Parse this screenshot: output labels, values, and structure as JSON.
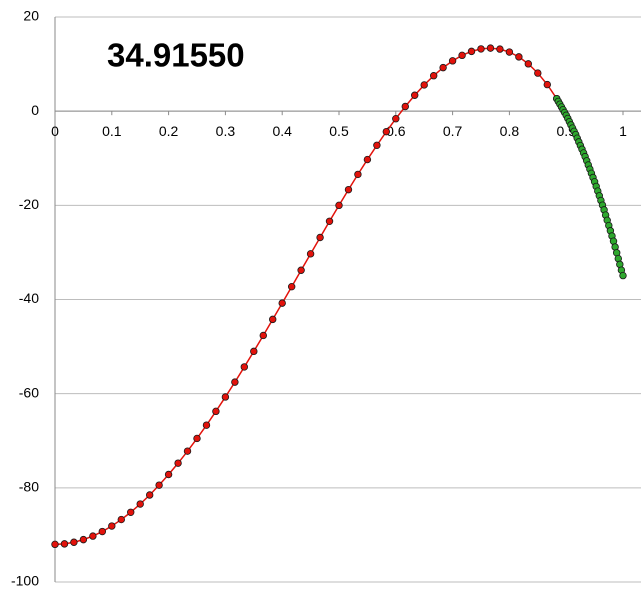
{
  "chart_data": {
    "type": "scatter",
    "title": "34.91550",
    "xlim": [
      0,
      1
    ],
    "ylim": [
      -100,
      20
    ],
    "xticks": [
      0,
      0.1,
      0.2,
      0.3,
      0.4,
      0.5,
      0.6,
      0.7,
      0.8,
      0.9,
      1
    ],
    "yticks": [
      20,
      0,
      -20,
      -40,
      -60,
      -80,
      -100
    ],
    "grid": true,
    "series": [
      {
        "color": "#e3120b",
        "mode": "lines+markers",
        "x": [
          0,
          0.0167,
          0.0333,
          0.05,
          0.0667,
          0.0833,
          0.1,
          0.1167,
          0.1333,
          0.15,
          0.1667,
          0.1833,
          0.2,
          0.2167,
          0.2333,
          0.25,
          0.2667,
          0.2833,
          0.3,
          0.3167,
          0.3333,
          0.35,
          0.3667,
          0.3833,
          0.4,
          0.4167,
          0.4333,
          0.45,
          0.4667,
          0.4833,
          0.5,
          0.5167,
          0.5333,
          0.55,
          0.5667,
          0.5833,
          0.6,
          0.6167,
          0.6333,
          0.65,
          0.6667,
          0.6833,
          0.7,
          0.7167,
          0.7333,
          0.75,
          0.7667,
          0.7833,
          0.8,
          0.8167,
          0.8333,
          0.85,
          0.8667,
          0.8833
        ],
        "values": [
          -92,
          -91.9,
          -91.56,
          -91.0,
          -90.25,
          -89.28,
          -88.11,
          -86.74,
          -85.19,
          -83.44,
          -81.52,
          -79.43,
          -77.17,
          -74.76,
          -72.21,
          -69.51,
          -66.69,
          -63.75,
          -60.7,
          -57.55,
          -54.32,
          -51.01,
          -47.64,
          -44.22,
          -40.77,
          -37.28,
          -33.79,
          -30.3,
          -26.83,
          -23.39,
          -20.0,
          -16.67,
          -13.43,
          -10.28,
          -7.25,
          -4.35,
          -1.6,
          0.99,
          3.38,
          5.57,
          7.53,
          9.25,
          10.69,
          11.86,
          12.7,
          13.22,
          13.39,
          13.18,
          12.56,
          11.53,
          10.05,
          8.09,
          5.64,
          2.66
        ]
      },
      {
        "color": "#2ea82e",
        "mode": "markers",
        "x": [
          0.8833,
          0.8861,
          0.8889,
          0.8917,
          0.8944,
          0.8972,
          0.9,
          0.9028,
          0.9056,
          0.9083,
          0.9111,
          0.9139,
          0.9167,
          0.9194,
          0.9222,
          0.925,
          0.9278,
          0.9306,
          0.9333,
          0.9361,
          0.9389,
          0.9417,
          0.9444,
          0.9472,
          0.95,
          0.9528,
          0.9556,
          0.9583,
          0.9611,
          0.9639,
          0.9667,
          0.9694,
          0.9722,
          0.975,
          0.9778,
          0.9806,
          0.9833,
          0.9861,
          0.9889,
          0.9917,
          0.9944,
          0.9972,
          1
        ],
        "values": [
          2.66,
          2.07,
          1.49,
          0.9,
          0.31,
          -0.27,
          -0.86,
          -1.54,
          -2.23,
          -2.91,
          -3.59,
          -4.28,
          -4.96,
          -5.74,
          -6.52,
          -7.3,
          -8.09,
          -8.87,
          -9.65,
          -10.54,
          -11.43,
          -12.32,
          -13.2,
          -14.09,
          -14.98,
          -15.98,
          -16.97,
          -17.97,
          -18.97,
          -19.96,
          -20.96,
          -22.07,
          -23.18,
          -24.29,
          -25.4,
          -26.51,
          -27.62,
          -28.85,
          -30.08,
          -31.31,
          -32.54,
          -33.77,
          -34.92
        ]
      }
    ]
  }
}
